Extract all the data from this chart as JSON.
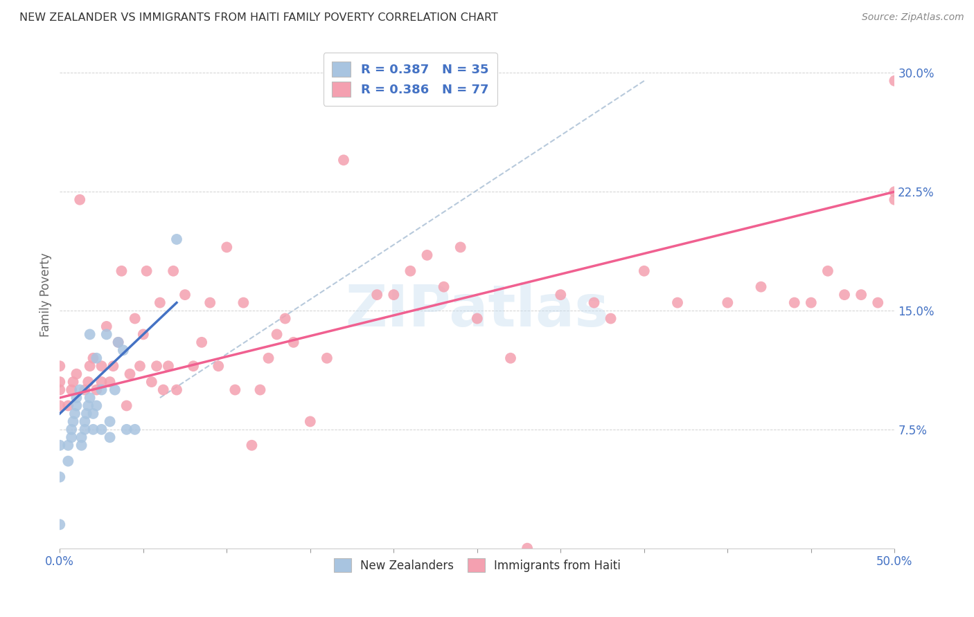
{
  "title": "NEW ZEALANDER VS IMMIGRANTS FROM HAITI FAMILY POVERTY CORRELATION CHART",
  "source": "Source: ZipAtlas.com",
  "ylabel": "Family Poverty",
  "xlim": [
    0.0,
    0.5
  ],
  "ylim": [
    0.0,
    0.32
  ],
  "x_tick_edge_labels": [
    "0.0%",
    "50.0%"
  ],
  "y_tick_labels": [
    "7.5%",
    "15.0%",
    "22.5%",
    "30.0%"
  ],
  "y_ticks": [
    0.075,
    0.15,
    0.225,
    0.3
  ],
  "watermark": "ZIPatlas",
  "legend_label1": "New Zealanders",
  "legend_label2": "Immigrants from Haiti",
  "color_nz": "#a8c4e0",
  "color_haiti": "#f4a0b0",
  "color_nz_line": "#4472c4",
  "color_haiti_line": "#f06090",
  "color_text_blue": "#4472c4",
  "nz_scatter_x": [
    0.0,
    0.0,
    0.0,
    0.005,
    0.005,
    0.007,
    0.007,
    0.008,
    0.009,
    0.01,
    0.01,
    0.012,
    0.013,
    0.013,
    0.015,
    0.015,
    0.016,
    0.017,
    0.018,
    0.018,
    0.02,
    0.02,
    0.022,
    0.022,
    0.025,
    0.025,
    0.028,
    0.03,
    0.03,
    0.033,
    0.035,
    0.038,
    0.04,
    0.045,
    0.07
  ],
  "nz_scatter_y": [
    0.015,
    0.045,
    0.065,
    0.055,
    0.065,
    0.07,
    0.075,
    0.08,
    0.085,
    0.09,
    0.095,
    0.1,
    0.065,
    0.07,
    0.075,
    0.08,
    0.085,
    0.09,
    0.095,
    0.135,
    0.075,
    0.085,
    0.09,
    0.12,
    0.075,
    0.1,
    0.135,
    0.07,
    0.08,
    0.1,
    0.13,
    0.125,
    0.075,
    0.075,
    0.195
  ],
  "haiti_scatter_x": [
    0.0,
    0.0,
    0.0,
    0.0,
    0.005,
    0.007,
    0.008,
    0.01,
    0.012,
    0.015,
    0.017,
    0.018,
    0.02,
    0.022,
    0.025,
    0.025,
    0.028,
    0.03,
    0.032,
    0.035,
    0.037,
    0.04,
    0.042,
    0.045,
    0.048,
    0.05,
    0.052,
    0.055,
    0.058,
    0.06,
    0.062,
    0.065,
    0.068,
    0.07,
    0.075,
    0.08,
    0.085,
    0.09,
    0.095,
    0.1,
    0.105,
    0.11,
    0.115,
    0.12,
    0.125,
    0.13,
    0.135,
    0.14,
    0.15,
    0.16,
    0.17,
    0.18,
    0.19,
    0.2,
    0.21,
    0.22,
    0.23,
    0.24,
    0.25,
    0.27,
    0.28,
    0.3,
    0.32,
    0.33,
    0.35,
    0.37,
    0.4,
    0.42,
    0.44,
    0.45,
    0.46,
    0.47,
    0.48,
    0.49,
    0.5,
    0.5,
    0.5
  ],
  "haiti_scatter_y": [
    0.09,
    0.1,
    0.105,
    0.115,
    0.09,
    0.1,
    0.105,
    0.11,
    0.22,
    0.1,
    0.105,
    0.115,
    0.12,
    0.1,
    0.105,
    0.115,
    0.14,
    0.105,
    0.115,
    0.13,
    0.175,
    0.09,
    0.11,
    0.145,
    0.115,
    0.135,
    0.175,
    0.105,
    0.115,
    0.155,
    0.1,
    0.115,
    0.175,
    0.1,
    0.16,
    0.115,
    0.13,
    0.155,
    0.115,
    0.19,
    0.1,
    0.155,
    0.065,
    0.1,
    0.12,
    0.135,
    0.145,
    0.13,
    0.08,
    0.12,
    0.245,
    0.295,
    0.16,
    0.16,
    0.175,
    0.185,
    0.165,
    0.19,
    0.145,
    0.12,
    0.0,
    0.16,
    0.155,
    0.145,
    0.175,
    0.155,
    0.155,
    0.165,
    0.155,
    0.155,
    0.175,
    0.16,
    0.16,
    0.155,
    0.22,
    0.295,
    0.225
  ],
  "nz_line_x": [
    0.0,
    0.07
  ],
  "nz_line_y": [
    0.085,
    0.155
  ],
  "haiti_line_x": [
    0.0,
    0.5
  ],
  "haiti_line_y": [
    0.095,
    0.225
  ],
  "trend_line_x": [
    0.06,
    0.35
  ],
  "trend_line_y": [
    0.095,
    0.295
  ],
  "minor_x_ticks": [
    0.0,
    0.05,
    0.1,
    0.15,
    0.2,
    0.25,
    0.3,
    0.35,
    0.4,
    0.45,
    0.5
  ]
}
